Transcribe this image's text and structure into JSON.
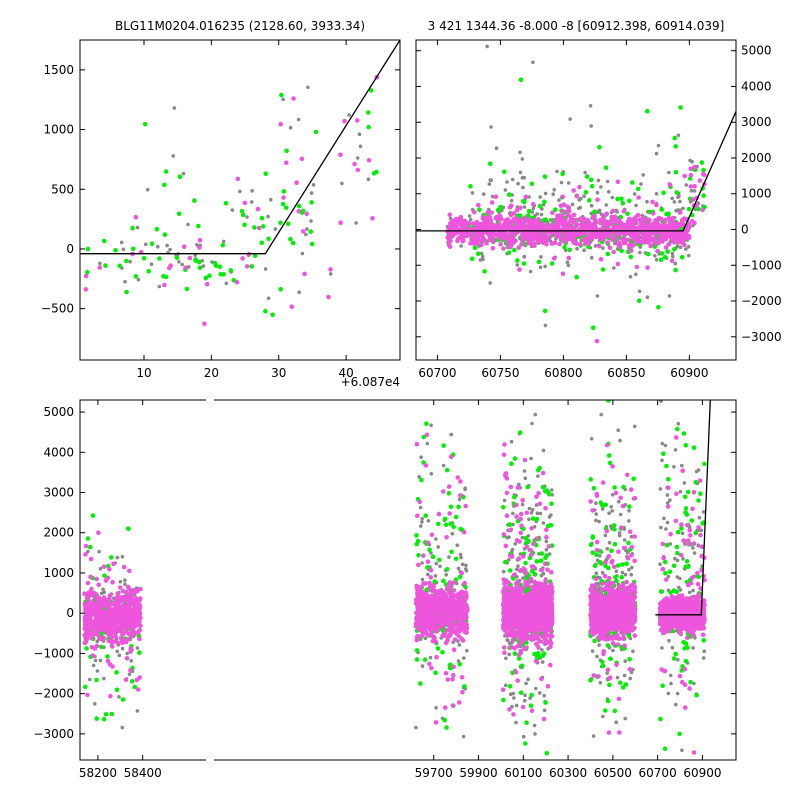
{
  "colors": {
    "gray": "#888888",
    "green": "#00ee00",
    "magenta": "#ee55dd",
    "line": "#000000"
  },
  "chart_data": [
    {
      "id": "top-left",
      "type": "scatter",
      "title": "BLG11M0204.016235 (2128.60, 3933.34)",
      "x_offset_label": "+6.087e4",
      "xlim": [
        0.5,
        48
      ],
      "ylim": [
        -930,
        1750
      ],
      "xticks": [
        10,
        20,
        30,
        40
      ],
      "yticks": [
        -500,
        0,
        500,
        1000,
        1500
      ],
      "ytick_labels": [
        "−500",
        "0",
        "500",
        "1000",
        "1500"
      ],
      "y_axis_side": "left",
      "model_line": [
        [
          0.5,
          -40
        ],
        [
          28,
          -40
        ],
        [
          48,
          1750
        ]
      ],
      "point_clusters": [
        {
          "x": [
            0.5,
            27
          ],
          "y": [
            -380,
            200
          ],
          "n": [
            24,
            38,
            14
          ]
        },
        {
          "x": [
            8,
            20
          ],
          "y": [
            -700,
            1500
          ],
          "n": [
            10,
            8,
            4
          ]
        },
        {
          "x": [
            22,
            35
          ],
          "y": [
            -200,
            650
          ],
          "n": [
            14,
            22,
            10
          ]
        },
        {
          "x": [
            30,
            45
          ],
          "y": [
            150,
            1550
          ],
          "n": [
            12,
            8,
            14
          ]
        },
        {
          "x": [
            28,
            38
          ],
          "y": [
            -900,
            200
          ],
          "n": [
            4,
            3,
            4
          ]
        }
      ]
    },
    {
      "id": "top-right",
      "type": "scatter",
      "title": "3 421 1344.36 -8.000 -8 [60912.398, 60914.039]",
      "xlim": [
        60683,
        60937
      ],
      "ylim": [
        -3650,
        5300
      ],
      "xticks": [
        60700,
        60750,
        60800,
        60850,
        60900
      ],
      "yticks": [
        -3000,
        -2000,
        -1000,
        0,
        1000,
        2000,
        3000,
        4000,
        5000
      ],
      "ytick_labels": [
        "−3000",
        "−2000",
        "−1000",
        "0",
        "1000",
        "2000",
        "3000",
        "4000",
        "5000"
      ],
      "y_axis_side": "right",
      "model_line": [
        [
          60683,
          -40
        ],
        [
          60895,
          -40
        ],
        [
          60937,
          3300
        ]
      ],
      "point_clusters": [
        {
          "x": [
            60708,
            60900
          ],
          "y": [
            -500,
            450
          ],
          "n": [
            260,
            60,
            900
          ]
        },
        {
          "x": [
            60725,
            60900
          ],
          "y": [
            -1400,
            1600
          ],
          "n": [
            260,
            120,
            90
          ]
        },
        {
          "x": [
            60735,
            60895
          ],
          "y": [
            -3500,
            5100
          ],
          "n": [
            40,
            35,
            6
          ]
        },
        {
          "x": [
            60900,
            60912
          ],
          "y": [
            -200,
            2500
          ],
          "n": [
            12,
            10,
            16
          ]
        }
      ]
    },
    {
      "id": "bottom",
      "type": "scatter",
      "xlim": [
        58120,
        61050
      ],
      "ylim": [
        -3650,
        5300
      ],
      "xticks": [
        58200,
        58400,
        59700,
        59900,
        60100,
        60300,
        60500,
        60700,
        60900
      ],
      "yticks": [
        -3000,
        -2000,
        -1000,
        0,
        1000,
        2000,
        3000,
        4000,
        5000
      ],
      "ytick_labels": [
        "−3000",
        "−2000",
        "−1000",
        "0",
        "1000",
        "2000",
        "3000",
        "4000",
        "5000"
      ],
      "y_axis_side": "left",
      "model_line": [
        [
          60690,
          -40
        ],
        [
          60895,
          -40
        ],
        [
          60935,
          5300
        ]
      ],
      "point_clusters": [
        {
          "x": [
            58140,
            58390
          ],
          "y": [
            -800,
            700
          ],
          "n": [
            160,
            60,
            500
          ]
        },
        {
          "x": [
            58140,
            58390
          ],
          "y": [
            -3300,
            2600
          ],
          "n": [
            60,
            45,
            60
          ]
        },
        {
          "x": [
            59620,
            59850
          ],
          "y": [
            -700,
            800
          ],
          "n": [
            180,
            80,
            500
          ]
        },
        {
          "x": [
            59620,
            59850
          ],
          "y": [
            -3600,
            5300
          ],
          "n": [
            90,
            70,
            60
          ]
        },
        {
          "x": [
            60010,
            60230
          ],
          "y": [
            -800,
            900
          ],
          "n": [
            320,
            110,
            800
          ]
        },
        {
          "x": [
            60010,
            60230
          ],
          "y": [
            -3600,
            5300
          ],
          "n": [
            170,
            110,
            110
          ]
        },
        {
          "x": [
            60400,
            60600
          ],
          "y": [
            -700,
            800
          ],
          "n": [
            250,
            90,
            650
          ]
        },
        {
          "x": [
            60400,
            60600
          ],
          "y": [
            -3500,
            5000
          ],
          "n": [
            140,
            90,
            70
          ]
        },
        {
          "x": [
            60710,
            60910
          ],
          "y": [
            -500,
            450
          ],
          "n": [
            220,
            50,
            650
          ]
        },
        {
          "x": [
            60710,
            60910
          ],
          "y": [
            -3600,
            5300
          ],
          "n": [
            90,
            80,
            60
          ]
        }
      ]
    }
  ]
}
